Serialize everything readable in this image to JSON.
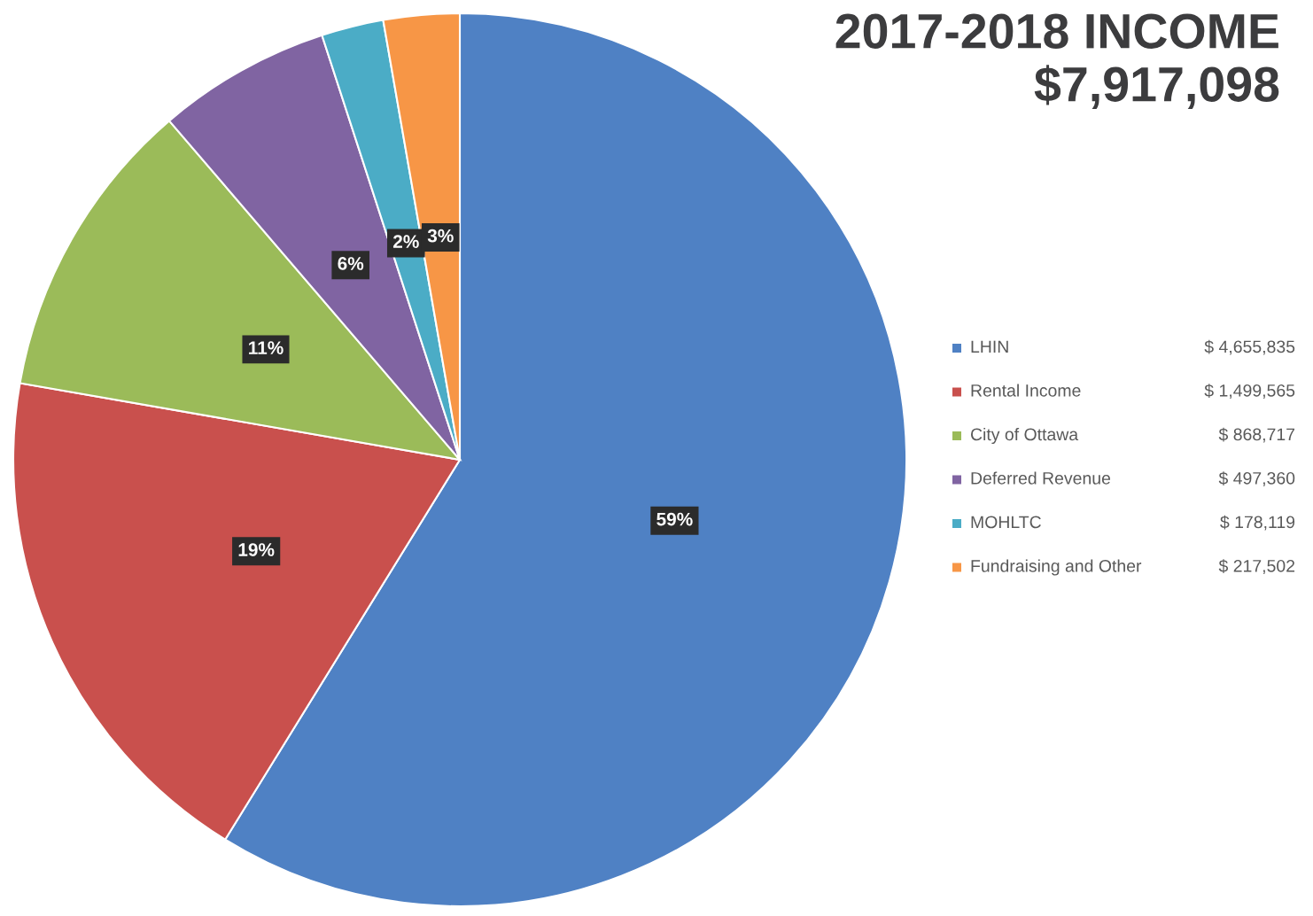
{
  "chart_data": {
    "type": "pie",
    "title": "2017-2018 INCOME",
    "subtitle": "$7,917,098",
    "categories": [
      "LHIN",
      "Rental Income",
      "City of Ottawa",
      "Deferred Revenue",
      "MOHLTC",
      "Fundraising and Other"
    ],
    "values": [
      4655835,
      1499565,
      868717,
      497360,
      178119,
      217502
    ],
    "value_labels": [
      "$ 4,655,835",
      "$ 1,499,565",
      "$ 868,717",
      "$ 497,360",
      "$ 178,119",
      "$ 217,502"
    ],
    "annotations": [
      "59%",
      "19%",
      "11%",
      "6%",
      "2%",
      "3%"
    ],
    "colors": [
      "#4f81c4",
      "#c9504d",
      "#9bbb59",
      "#8064a2",
      "#4bacc6",
      "#f79646"
    ],
    "legend": "right"
  }
}
